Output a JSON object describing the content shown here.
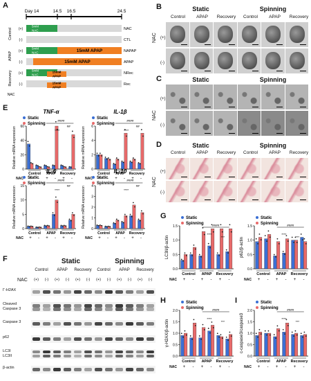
{
  "panel_letters": [
    "A",
    "B",
    "C",
    "D",
    "E",
    "F",
    "G",
    "H",
    "I"
  ],
  "timeline": {
    "days": [
      "Day 14",
      "14.5",
      "16.5",
      "24.5"
    ],
    "nac_signs": [
      "(+)",
      "(-)",
      "(+)",
      "(-)",
      "(+)",
      "(-)"
    ],
    "groups": [
      "Control",
      "APAP",
      "Recovery"
    ],
    "rows": [
      {
        "label": "NAC",
        "bar1": "5mM\nNAC",
        "bar2": ""
      },
      {
        "label": "CTL",
        "bar1": "",
        "bar2": ""
      },
      {
        "label": "NAPAP",
        "bar1": "5mM\nNAC",
        "bar2": "15mM APAP"
      },
      {
        "label": "APAP",
        "bar1": "",
        "bar2": "15mM APAP"
      },
      {
        "label": "NRec",
        "bar1": "5mM\nNAC",
        "bar2": "15mM\nAPAP"
      },
      {
        "label": "Rec",
        "bar1": "",
        "bar2": "15mM\nAPAP"
      }
    ],
    "side_label": "NAC"
  },
  "static": "Static",
  "spinning": "Spinning",
  "nac": "NAC",
  "cond": [
    "Control",
    "APAP",
    "Recovery"
  ],
  "signs": [
    "(+)",
    "(-)"
  ],
  "legend": {
    "static": "Static",
    "spinning": "Spinning"
  },
  "colors": {
    "static": "#3b6fd4",
    "spinning": "#e86a6a"
  },
  "e_charts": [
    {
      "title": "TNF-α",
      "ylabel": "Relative mRNA expression"
    },
    {
      "title": "IL-1β",
      "ylabel": "Relative mRNA expression"
    },
    {
      "title": "IL-6",
      "ylabel": "Relative mRNA expression"
    },
    {
      "title": "IL-10",
      "ylabel": "Relative mRNA expression"
    }
  ],
  "nac_row": {
    "label": "NAC",
    "vals": [
      "+",
      "-",
      "+",
      "-",
      "+",
      "-"
    ]
  },
  "f_panel": {
    "nac_signs": [
      "(+)",
      "(-)",
      "(+)",
      "(-)",
      "(+)",
      "(-)",
      "(+)",
      "(-)",
      "(+)",
      "(-)",
      "(+)",
      "(-)"
    ],
    "markers": [
      "Γ-H2AX",
      "Cleaved\nCaspase 3",
      "Caspase 3",
      "p62",
      "LC3I\nLC3II",
      "β-actin"
    ]
  },
  "chart_data": [
    {
      "panel": "G-left",
      "type": "bar",
      "ylabel": "LC3II/β-actin",
      "categories": [
        "Control +",
        "Control -",
        "APAP +",
        "APAP -",
        "Recovery +",
        "Recovery -"
      ],
      "series": [
        {
          "name": "Static",
          "values": [
            0.3,
            0.5,
            0.45,
            0.8,
            0.5,
            0.6
          ]
        },
        {
          "name": "Spinning",
          "values": [
            0.5,
            0.75,
            1.3,
            1.4,
            1.4,
            1.4
          ]
        }
      ],
      "ylim": [
        0,
        1.5
      ],
      "yticks": [
        "0.0",
        "0.5",
        "1.0",
        "1.5"
      ]
    },
    {
      "panel": "G-right",
      "type": "bar",
      "ylabel": "p62/β-actin",
      "categories": [
        "Control +",
        "Control -",
        "APAP +",
        "APAP -",
        "Recovery +",
        "Recovery -"
      ],
      "series": [
        {
          "name": "Static",
          "values": [
            0.95,
            1.05,
            0.45,
            0.55,
            1.0,
            1.1
          ]
        },
        {
          "name": "Spinning",
          "values": [
            1.1,
            1.2,
            0.95,
            1.05,
            1.0,
            0.95
          ]
        }
      ],
      "ylim": [
        0,
        1.5
      ],
      "yticks": [
        "0.0",
        "0.5",
        "1.0",
        "1.5"
      ]
    },
    {
      "panel": "H",
      "type": "bar",
      "ylabel": "γ-H2AX/β-actin",
      "categories": [
        "Control +",
        "Control -",
        "APAP +",
        "APAP -",
        "Recovery +",
        "Recovery -"
      ],
      "series": [
        {
          "name": "Static",
          "values": [
            0.9,
            0.8,
            0.8,
            1.1,
            0.9,
            0.75
          ]
        },
        {
          "name": "Spinning",
          "values": [
            1.0,
            1.45,
            1.25,
            1.35,
            0.85,
            0.95
          ]
        }
      ],
      "ylim": [
        0,
        2.0
      ],
      "yticks": [
        "0.0",
        "0.5",
        "1.0",
        "1.5",
        "2.0"
      ]
    },
    {
      "panel": "I",
      "type": "bar",
      "ylabel": "c-caspase3/caspase3",
      "categories": [
        "Control +",
        "Control -",
        "APAP +",
        "APAP -",
        "Recovery +",
        "Recovery -"
      ],
      "series": [
        {
          "name": "Static",
          "values": [
            0.9,
            1.0,
            0.85,
            1.05,
            0.95,
            0.9
          ]
        },
        {
          "name": "Spinning",
          "values": [
            1.05,
            1.0,
            1.2,
            1.45,
            1.0,
            0.95
          ]
        }
      ],
      "ylim": [
        0,
        2.0
      ],
      "yticks": [
        "0.0",
        "0.5",
        "1.0",
        "1.5",
        "2.0"
      ]
    }
  ],
  "sig": [
    "****",
    "####",
    "***",
    "##",
    "#",
    "n.s"
  ]
}
